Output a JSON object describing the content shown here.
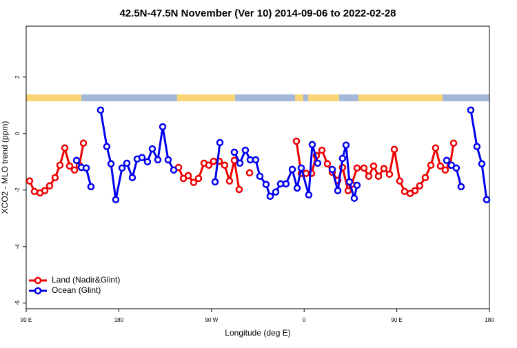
{
  "chart_data": {
    "type": "line",
    "title": "42.5N-47.5N November (Ver 10)   2014-09-06 to 2022-02-28",
    "xlabel": "Longitude (deg E)",
    "ylabel": "XCO2 - MLO trend (ppm)",
    "xlim": [
      90,
      540
    ],
    "xticks": [
      {
        "value": 90,
        "label": "90 E"
      },
      {
        "value": 180,
        "label": "180"
      },
      {
        "value": 270,
        "label": "90 W"
      },
      {
        "value": 360,
        "label": "0"
      },
      {
        "value": 450,
        "label": "90 E"
      },
      {
        "value": 540,
        "label": "180"
      }
    ],
    "ylim": [
      -6.2,
      3.8
    ],
    "yticks": [
      -6,
      -4,
      -2,
      0,
      2
    ],
    "legend": "bottomleft",
    "series": [
      {
        "name": "Land (Nadir&Glint)",
        "color": "#ee0000",
        "x": [
          93.3,
          98.0,
          103.4,
          108.1,
          112.8,
          118.1,
          122.8,
          127.5,
          132.2,
          136.9,
          141.6,
          145.6,
          null,
          238.0,
          242.7,
          247.4,
          252.7,
          257.4,
          262.8,
          267.4,
          272.1,
          277.5,
          282.8,
          287.5,
          292.2,
          296.9,
          null,
          307.0,
          null,
          352.5,
          357.2,
          361.9,
          367.2,
          371.9,
          377.3,
          382.6,
          387.3,
          392.7,
          397.3,
          402.7,
          406.1,
          411.4,
          418.1,
          422.8,
          427.5,
          432.2,
          437.5,
          442.9,
          447.6,
          452.9,
          457.6,
          463.0,
          467.7,
          472.3,
          477.7,
          483.1,
          487.7,
          492.4,
          497.1,
          501.8,
          505.2
        ],
        "values": [
          -1.68,
          -2.05,
          -2.1,
          -2.02,
          -1.85,
          -1.56,
          -1.12,
          -0.51,
          -1.15,
          -1.29,
          -1.12,
          -0.34,
          null,
          -1.2,
          -1.59,
          -1.49,
          -1.73,
          -1.59,
          -1.05,
          -1.12,
          -0.98,
          -0.98,
          -1.12,
          -1.68,
          -0.95,
          -1.98,
          null,
          -1.39,
          null,
          -0.27,
          -1.41,
          -1.41,
          -1.41,
          -0.78,
          -0.59,
          -1.07,
          -1.37,
          -1.66,
          -1.2,
          -2.02,
          -1.8,
          -1.22,
          -1.22,
          -1.51,
          -1.15,
          -1.51,
          -1.24,
          -1.44,
          -0.56,
          -1.68,
          -2.05,
          -2.12,
          -2.02,
          -1.85,
          -1.56,
          -1.12,
          -0.51,
          -1.15,
          -1.29,
          -1.12,
          -0.34
        ]
      },
      {
        "name": "Ocean (Glint)",
        "color": "#0000ee",
        "x": [
          138.9,
          143.6,
          148.3,
          152.9,
          null,
          162.3,
          168.3,
          172.4,
          177.0,
          183.1,
          187.8,
          193.1,
          197.8,
          202.5,
          207.8,
          212.5,
          217.9,
          222.6,
          227.9,
          233.3,
          null,
          273.5,
          278.2,
          null,
          292.2,
          297.6,
          302.9,
          307.6,
          313.0,
          317.0,
          323.0,
          327.0,
          332.4,
          337.1,
          342.4,
          348.5,
          353.2,
          357.2,
          364.5,
          367.9,
          373.2,
          null,
          387.3,
          392.7,
          397.3,
          400.7,
          404.0,
          408.7,
          411.4,
          null,
          498.5,
          503.1,
          507.8,
          512.5,
          null,
          521.9,
          527.9,
          532.6,
          537.3
        ],
        "values": [
          -0.95,
          -1.2,
          -1.22,
          -1.88,
          null,
          0.83,
          -0.46,
          -1.07,
          -2.34,
          -1.22,
          -1.05,
          -1.56,
          -0.9,
          -0.85,
          -1.0,
          -0.54,
          -0.93,
          0.24,
          -0.93,
          -1.29,
          null,
          -1.71,
          -0.32,
          null,
          -0.66,
          -1.05,
          -0.59,
          -0.93,
          -0.93,
          -1.51,
          -1.8,
          -2.22,
          -2.07,
          -1.78,
          -1.78,
          -1.27,
          -1.93,
          -1.22,
          -2.17,
          -0.39,
          -1.05,
          null,
          -1.27,
          -2.02,
          -0.88,
          -0.41,
          -1.71,
          -2.29,
          -1.83,
          null,
          -0.95,
          -1.12,
          -1.22,
          -1.88,
          null,
          0.83,
          -0.46,
          -1.07,
          -2.34
        ]
      }
    ]
  }
}
